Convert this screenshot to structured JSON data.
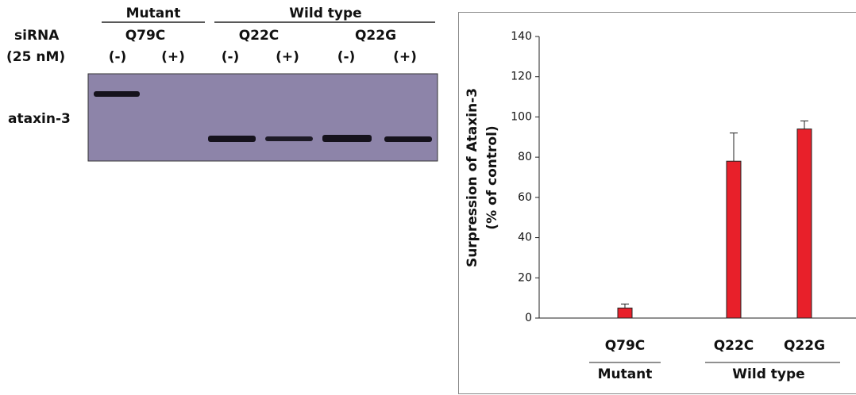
{
  "blot": {
    "groups": [
      "Mutant",
      "Wild type"
    ],
    "row_labels": [
      "siRNA",
      "(25 nM)"
    ],
    "constructs": [
      "Q79C",
      "Q22C",
      "Q22G"
    ],
    "lanes": [
      "(-)",
      "(+)",
      "(-)",
      "(+)",
      "(-)",
      "(+)"
    ],
    "band_label": "ataxin-3"
  },
  "chart_data": {
    "type": "bar",
    "y_label": [
      "Surpression of Ataxin-3",
      "(% of control)"
    ],
    "categories": [
      "Q79C",
      "Q22C",
      "Q22G"
    ],
    "values": [
      5,
      78,
      94
    ],
    "errors": [
      2,
      14,
      4
    ],
    "color": "#e8202a",
    "groups": [
      "Mutant",
      "Wild type"
    ],
    "ylim": [
      0,
      140
    ],
    "yticks": [
      0,
      20,
      40,
      60,
      80,
      100,
      120,
      140
    ]
  }
}
